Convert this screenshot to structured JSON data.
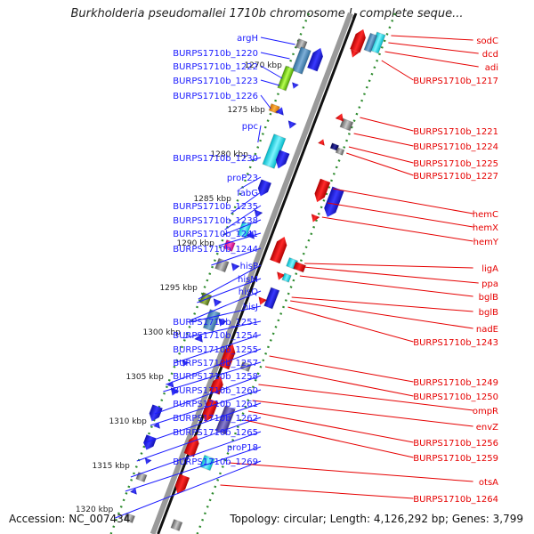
{
  "title": "Burkholderia pseudomallei 1710b chromosome I, complete seque...",
  "accession": "Accession: NC_007434",
  "topology": "Topology: circular; Length: 4,126,292 bp; Genes: 3,799",
  "colors": {
    "left_label": "#1a1aff",
    "right_label": "#e60000",
    "backbone": "#9a9a9a",
    "tick": "#2e8b2e"
  },
  "kbp_labels": [
    "1270 kbp",
    "1275 kbp",
    "1280 kbp",
    "1285 kbp",
    "1290 kbp",
    "1295 kbp",
    "1300 kbp",
    "1305 kbp",
    "1310 kbp",
    "1315 kbp",
    "1320 kbp"
  ],
  "left_labels": [
    "argH",
    "BURPS1710b_1220",
    "BURPS1710b_1222",
    "BURPS1710b_1223",
    "BURPS1710b_1226",
    "ppc",
    "BURPS1710b_1230",
    "proP23",
    "fabG",
    "BURPS1710b_1235",
    "BURPS1710b_1238",
    "BURPS1710b_1241",
    "BURPS1710b_1244",
    "hisP",
    "hisM",
    "hisQ",
    "hisJ",
    "BURPS1710b_1251",
    "BURPS1710b_1254",
    "BURPS1710b_1255",
    "BURPS1710b_1257",
    "BURPS1710b_1258",
    "BURPS1710b_1260",
    "BURPS1710b_1261",
    "BURPS1710b_1262",
    "BURPS1710b_1265",
    "proP18",
    "BURPS1710b_1269"
  ],
  "right_labels": [
    "sodC",
    "dcd",
    "adi",
    "BURPS1710b_1217",
    "BURPS1710b_1221",
    "BURPS1710b_1224",
    "BURPS1710b_1225",
    "BURPS1710b_1227",
    "hemC",
    "hemX",
    "hemY",
    "ligA",
    "ppa",
    "bglB",
    "bglB",
    "nadE",
    "BURPS1710b_1243",
    "BURPS1710b_1249",
    "BURPS1710b_1250",
    "ompR",
    "envZ",
    "BURPS1710b_1256",
    "BURPS1710b_1259",
    "otsA",
    "BURPS1710b_1264"
  ]
}
